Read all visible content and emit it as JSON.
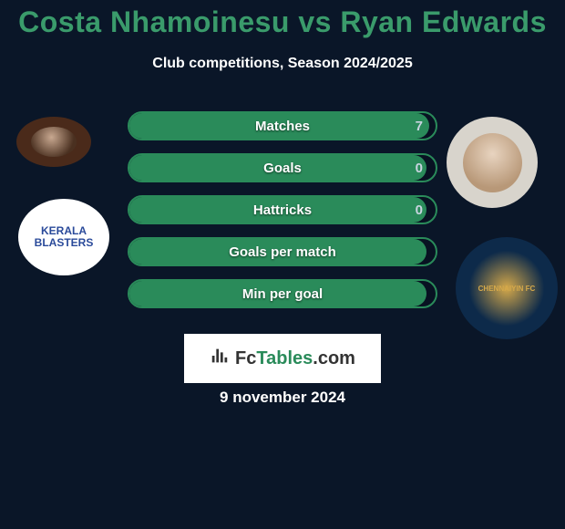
{
  "title": "Costa Nhamoinesu vs Ryan Edwards",
  "subtitle": "Club competitions, Season 2024/2025",
  "stats": [
    {
      "label": "Matches",
      "value": "7",
      "fill_pct": 98
    },
    {
      "label": "Goals",
      "value": "0",
      "fill_pct": 97
    },
    {
      "label": "Hattricks",
      "value": "0",
      "fill_pct": 97
    },
    {
      "label": "Goals per match",
      "value": "",
      "fill_pct": 97
    },
    {
      "label": "Min per goal",
      "value": "",
      "fill_pct": 97
    }
  ],
  "logo": {
    "fc": "Fc",
    "tables": "Tables",
    "suffix": ".com"
  },
  "date": "9 november 2024",
  "colors": {
    "bg": "#0a1628",
    "accent": "#2a8b5a",
    "title": "#3a9b6b",
    "text": "#ffffff"
  },
  "avatars": {
    "left_player": {
      "name": "costa-nhamoinesu",
      "bg": "#4a2a1a"
    },
    "right_player": {
      "name": "ryan-edwards",
      "bg": "#d8d4cc"
    },
    "left_club": {
      "name": "kerala-blasters",
      "label": "KERALA\nBLASTERS"
    },
    "right_club": {
      "name": "chennaiyin-fc",
      "label": "CHENNAIYIN FC"
    }
  }
}
